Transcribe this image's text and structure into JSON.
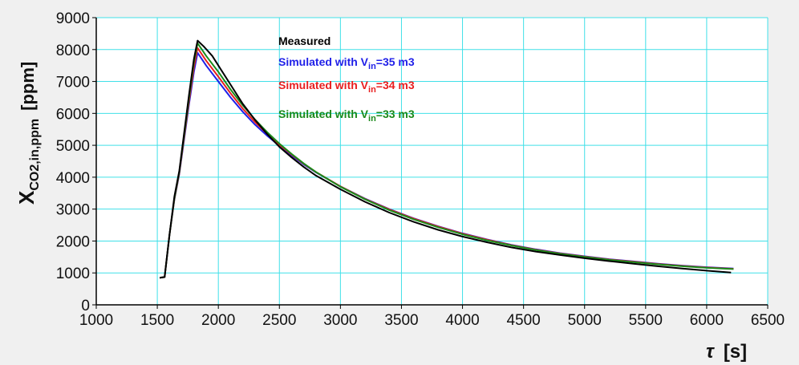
{
  "chart_data": {
    "type": "line",
    "ylabel": {
      "main": "X",
      "sub": "CO2,in,ppm",
      "unit": "[ppm]"
    },
    "xlabel": {
      "main": "τ",
      "unit": "[s]"
    },
    "xlim": [
      1000,
      6500
    ],
    "ylim": [
      0,
      9000
    ],
    "xticks": [
      1000,
      1500,
      2000,
      2500,
      3000,
      3500,
      4000,
      4500,
      5000,
      5500,
      6000,
      6500
    ],
    "yticks": [
      0,
      1000,
      2000,
      3000,
      4000,
      5000,
      6000,
      7000,
      8000,
      9000
    ],
    "grid": true,
    "grid_color": "#40e0e8",
    "legend_position": "top-center",
    "series": [
      {
        "name": "Measured",
        "color": "#000000",
        "points": [
          [
            1520,
            850
          ],
          [
            1560,
            870
          ],
          [
            1600,
            2200
          ],
          [
            1640,
            3400
          ],
          [
            1680,
            4200
          ],
          [
            1720,
            5400
          ],
          [
            1760,
            6600
          ],
          [
            1800,
            7700
          ],
          [
            1830,
            8280
          ],
          [
            1880,
            8100
          ],
          [
            1950,
            7800
          ],
          [
            2000,
            7500
          ],
          [
            2100,
            6900
          ],
          [
            2200,
            6300
          ],
          [
            2300,
            5800
          ],
          [
            2400,
            5350
          ],
          [
            2500,
            4950
          ],
          [
            2600,
            4620
          ],
          [
            2700,
            4320
          ],
          [
            2800,
            4050
          ],
          [
            3000,
            3620
          ],
          [
            3200,
            3230
          ],
          [
            3400,
            2890
          ],
          [
            3600,
            2600
          ],
          [
            3800,
            2350
          ],
          [
            4000,
            2140
          ],
          [
            4200,
            1960
          ],
          [
            4400,
            1800
          ],
          [
            4600,
            1670
          ],
          [
            4800,
            1560
          ],
          [
            5000,
            1460
          ],
          [
            5200,
            1370
          ],
          [
            5400,
            1290
          ],
          [
            5600,
            1210
          ],
          [
            5800,
            1140
          ],
          [
            6000,
            1070
          ],
          [
            6200,
            1010
          ]
        ]
      },
      {
        "name": "Simulated with V_in=35 m3",
        "legend": {
          "prefix": "Simulated with V",
          "sub": "in",
          "suffix": "=35 m3"
        },
        "color": "#1f1fe8",
        "points": [
          [
            1520,
            850
          ],
          [
            1560,
            870
          ],
          [
            1600,
            2200
          ],
          [
            1640,
            3300
          ],
          [
            1680,
            4100
          ],
          [
            1720,
            5200
          ],
          [
            1760,
            6300
          ],
          [
            1800,
            7300
          ],
          [
            1830,
            7900
          ],
          [
            1900,
            7500
          ],
          [
            2000,
            7000
          ],
          [
            2100,
            6500
          ],
          [
            2200,
            6050
          ],
          [
            2300,
            5650
          ],
          [
            2400,
            5300
          ],
          [
            2500,
            4980
          ],
          [
            2600,
            4680
          ],
          [
            2700,
            4400
          ],
          [
            2800,
            4150
          ],
          [
            3000,
            3710
          ],
          [
            3200,
            3330
          ],
          [
            3400,
            3000
          ],
          [
            3600,
            2710
          ],
          [
            3800,
            2460
          ],
          [
            4000,
            2240
          ],
          [
            4200,
            2050
          ],
          [
            4400,
            1880
          ],
          [
            4600,
            1740
          ],
          [
            4800,
            1620
          ],
          [
            5000,
            1520
          ],
          [
            5200,
            1430
          ],
          [
            5400,
            1360
          ],
          [
            5600,
            1290
          ],
          [
            5800,
            1230
          ],
          [
            6000,
            1180
          ],
          [
            6220,
            1140
          ]
        ]
      },
      {
        "name": "Simulated with V_in=34 m3",
        "legend": {
          "prefix": "Simulated with V",
          "sub": "in",
          "suffix": "=34 m3"
        },
        "color": "#e81f1f",
        "points": [
          [
            1520,
            850
          ],
          [
            1560,
            870
          ],
          [
            1600,
            2200
          ],
          [
            1640,
            3320
          ],
          [
            1680,
            4130
          ],
          [
            1720,
            5260
          ],
          [
            1760,
            6400
          ],
          [
            1800,
            7450
          ],
          [
            1830,
            8050
          ],
          [
            1900,
            7650
          ],
          [
            2000,
            7150
          ],
          [
            2100,
            6630
          ],
          [
            2200,
            6150
          ],
          [
            2300,
            5730
          ],
          [
            2400,
            5360
          ],
          [
            2500,
            5020
          ],
          [
            2600,
            4710
          ],
          [
            2700,
            4420
          ],
          [
            2800,
            4160
          ],
          [
            3000,
            3710
          ],
          [
            3200,
            3320
          ],
          [
            3400,
            2990
          ],
          [
            3600,
            2700
          ],
          [
            3800,
            2450
          ],
          [
            4000,
            2230
          ],
          [
            4200,
            2040
          ],
          [
            4400,
            1870
          ],
          [
            4600,
            1730
          ],
          [
            4800,
            1610
          ],
          [
            5000,
            1510
          ],
          [
            5200,
            1420
          ],
          [
            5400,
            1350
          ],
          [
            5600,
            1280
          ],
          [
            5800,
            1220
          ],
          [
            6000,
            1170
          ],
          [
            6220,
            1130
          ]
        ]
      },
      {
        "name": "Simulated with V_in=33 m3",
        "legend": {
          "prefix": "Simulated with V",
          "sub": "in",
          "suffix": "=33 m3"
        },
        "color": "#1a8a1a",
        "points": [
          [
            1520,
            850
          ],
          [
            1560,
            870
          ],
          [
            1600,
            2200
          ],
          [
            1640,
            3340
          ],
          [
            1680,
            4160
          ],
          [
            1720,
            5320
          ],
          [
            1760,
            6500
          ],
          [
            1800,
            7600
          ],
          [
            1830,
            8200
          ],
          [
            1900,
            7800
          ],
          [
            2000,
            7300
          ],
          [
            2100,
            6750
          ],
          [
            2200,
            6250
          ],
          [
            2300,
            5810
          ],
          [
            2400,
            5410
          ],
          [
            2500,
            5050
          ],
          [
            2600,
            4730
          ],
          [
            2700,
            4430
          ],
          [
            2800,
            4160
          ],
          [
            3000,
            3700
          ],
          [
            3200,
            3310
          ],
          [
            3400,
            2970
          ],
          [
            3600,
            2680
          ],
          [
            3800,
            2430
          ],
          [
            4000,
            2210
          ],
          [
            4200,
            2020
          ],
          [
            4400,
            1860
          ],
          [
            4600,
            1720
          ],
          [
            4800,
            1600
          ],
          [
            5000,
            1500
          ],
          [
            5200,
            1410
          ],
          [
            5400,
            1340
          ],
          [
            5600,
            1270
          ],
          [
            5800,
            1210
          ],
          [
            6000,
            1160
          ],
          [
            6220,
            1120
          ]
        ]
      }
    ]
  }
}
